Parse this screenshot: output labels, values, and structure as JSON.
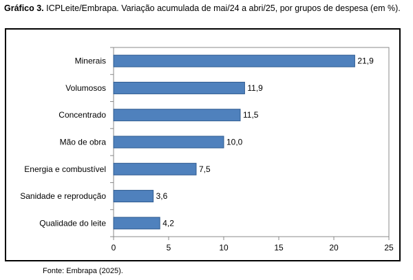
{
  "caption": {
    "bold": "Gráfico 3.",
    "text": " ICPLeite/Embrapa. Variação acumulada de mai/24 a abri/25, por grupos de despesa (em %)."
  },
  "source": "Fonte: Embrapa (2025).",
  "colors": {
    "bar_fill": "#4f81bd",
    "bar_stroke": "#2e5a8f",
    "axis": "#888888"
  },
  "chart_data": {
    "type": "bar",
    "orientation": "horizontal",
    "categories": [
      "Minerais",
      "Volumosos",
      "Concentrado",
      "Mão de obra",
      "Energia e combustível",
      "Sanidade e reprodução",
      "Qualidade do leite"
    ],
    "values": [
      21.9,
      11.9,
      11.5,
      10.0,
      7.5,
      3.6,
      4.2
    ],
    "value_labels": [
      "21,9",
      "11,9",
      "11,5",
      "10,0",
      "7,5",
      "3,6",
      "4,2"
    ],
    "xlim": [
      0,
      25
    ],
    "xticks": [
      0,
      5,
      10,
      15,
      20,
      25
    ],
    "xtick_labels": [
      "0",
      "5",
      "10",
      "15",
      "20",
      "25"
    ],
    "grid": false,
    "title": "",
    "xlabel": "",
    "ylabel": ""
  }
}
